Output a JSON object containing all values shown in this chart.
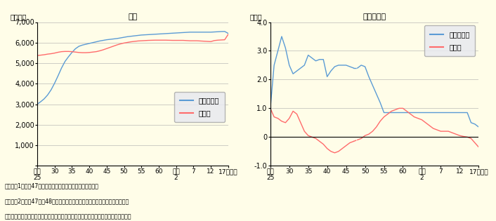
{
  "background_color": "#FFFDE8",
  "title1": "人口",
  "title2": "人口増加率",
  "ylabel1": "（万人）",
  "ylabel2": "（％）",
  "legend_san": "三大都市圈",
  "legend_chi": "地方圈",
  "color_san": "#5B9BD5",
  "color_chi": "#FF6B6B",
  "note1": "（注）　1　昭和47年（沖縄返還）以前は沖縄を含まない。",
  "note2": "　　　　2　昭和47年、48年は沖縄返還による影響が大きいため破線とした。",
  "note3": "資料）総務省「人口推計（国勢調査の中間年は、補間補正後の推計人口）」より作成",
  "pop_ylim": [
    0,
    7000
  ],
  "pop_yticks": [
    0,
    1000,
    2000,
    3000,
    4000,
    5000,
    6000,
    7000
  ],
  "rate_ylim": [
    -1.0,
    4.0
  ],
  "rate_yticks": [
    -1.0,
    0.0,
    1.0,
    2.0,
    3.0,
    4.0
  ],
  "xtick_positions": [
    25,
    30,
    35,
    40,
    45,
    50,
    55,
    60,
    65,
    70,
    75,
    80
  ],
  "xtick_labels": [
    "昭和\n25",
    "30",
    "35",
    "40",
    "45",
    "50",
    "55",
    "60",
    "平成\n2",
    "7",
    "12",
    "17（年）"
  ],
  "pop_san": [
    3000,
    3120,
    3260,
    3450,
    3700,
    4020,
    4380,
    4760,
    5080,
    5310,
    5520,
    5700,
    5820,
    5880,
    5920,
    5960,
    6000,
    6040,
    6080,
    6110,
    6140,
    6160,
    6180,
    6200,
    6230,
    6260,
    6290,
    6310,
    6330,
    6350,
    6370,
    6380,
    6390,
    6400,
    6410,
    6420,
    6430,
    6440,
    6450,
    6460,
    6470,
    6480,
    6490,
    6500,
    6510,
    6510,
    6510,
    6510,
    6510,
    6510,
    6510,
    6520,
    6530,
    6540,
    6545,
    6450
  ],
  "pop_chi": [
    5370,
    5390,
    5410,
    5440,
    5460,
    5490,
    5530,
    5560,
    5570,
    5570,
    5560,
    5540,
    5520,
    5510,
    5510,
    5520,
    5540,
    5560,
    5600,
    5650,
    5710,
    5770,
    5830,
    5890,
    5940,
    5980,
    6010,
    6040,
    6060,
    6080,
    6090,
    6100,
    6110,
    6115,
    6120,
    6120,
    6120,
    6120,
    6115,
    6110,
    6110,
    6110,
    6110,
    6100,
    6090,
    6090,
    6090,
    6080,
    6070,
    6060,
    6050,
    6100,
    6120,
    6130,
    6140,
    6400
  ],
  "rate_san": [
    1.0,
    2.5,
    3.0,
    3.5,
    3.1,
    2.5,
    2.2,
    2.3,
    2.4,
    2.5,
    2.85,
    2.75,
    2.65,
    2.7,
    2.7,
    2.1,
    2.3,
    2.45,
    2.5,
    2.5,
    2.5,
    2.45,
    2.4,
    2.4,
    2.5,
    2.45,
    2.1,
    1.8,
    1.5,
    1.2,
    0.85,
    0.85,
    0.85,
    0.85,
    0.85,
    0.85,
    0.85,
    0.85,
    0.85,
    0.85,
    0.85,
    0.85,
    0.85,
    0.85,
    0.85,
    0.85,
    0.85,
    0.85,
    0.85,
    0.85,
    0.85,
    0.85,
    0.85,
    0.5,
    0.45,
    0.35
  ],
  "rate_chi": [
    1.0,
    0.7,
    0.65,
    0.55,
    0.5,
    0.65,
    0.9,
    0.8,
    0.5,
    0.2,
    0.05,
    0.0,
    -0.05,
    -0.15,
    -0.25,
    -0.4,
    -0.5,
    -0.55,
    -0.5,
    -0.4,
    -0.3,
    -0.2,
    -0.15,
    -0.1,
    -0.05,
    0.05,
    0.1,
    0.2,
    0.35,
    0.55,
    0.7,
    0.8,
    0.9,
    0.95,
    1.0,
    1.0,
    0.9,
    0.8,
    0.7,
    0.65,
    0.6,
    0.5,
    0.4,
    0.3,
    0.25,
    0.2,
    0.2,
    0.2,
    0.15,
    0.1,
    0.05,
    0.02,
    0.0,
    -0.05,
    -0.2,
    -0.35
  ]
}
